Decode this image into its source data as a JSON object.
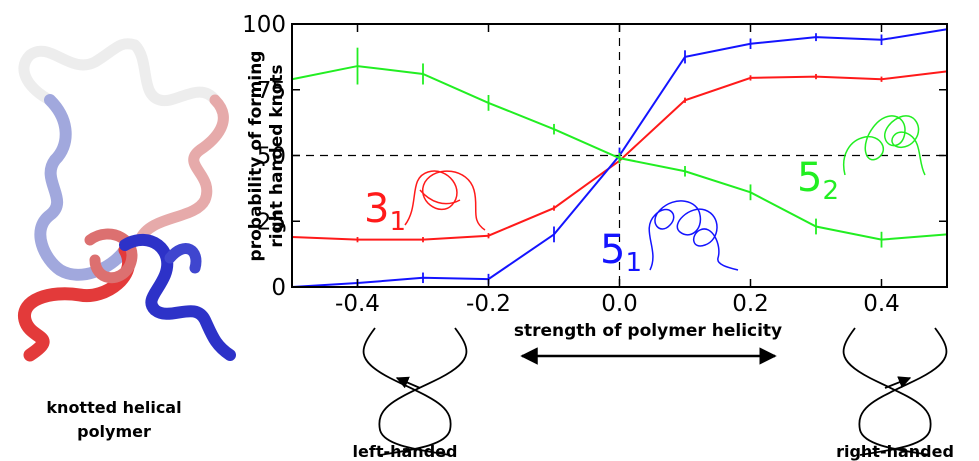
{
  "chart_data": {
    "type": "line",
    "xlabel": "strength of polymer helicity",
    "ylabel_line1": "probability of forming",
    "ylabel_line2": "right handed knots",
    "xlim": [
      -0.5,
      0.5
    ],
    "ylim": [
      0,
      100
    ],
    "x_ticks": [
      "-0.4",
      "-0.2",
      "0.0",
      "0.2",
      "0.4"
    ],
    "x_tick_values": [
      -0.4,
      -0.2,
      0.0,
      0.2,
      0.4
    ],
    "y_ticks": [
      "0",
      "25",
      "50",
      "75",
      "100"
    ],
    "y_tick_values": [
      0,
      25,
      50,
      75,
      100
    ],
    "grid": "dashed lines at x=0 and y=50",
    "x": [
      -0.5,
      -0.4,
      -0.3,
      -0.2,
      -0.1,
      0.0,
      0.1,
      0.2,
      0.3,
      0.4,
      0.5
    ],
    "series": [
      {
        "label_main": "3",
        "label_sub": "1",
        "color": "#ff1a1a",
        "values": [
          19,
          18,
          18,
          19.5,
          30,
          48,
          71,
          79.5,
          80,
          79,
          82
        ],
        "errors": [
          0,
          1,
          1,
          1,
          1,
          1,
          1,
          1,
          1,
          1,
          1
        ]
      },
      {
        "label_main": "5",
        "label_sub": "1",
        "color": "#1414ff",
        "values": [
          0,
          1.5,
          3.5,
          3,
          20,
          50,
          87.5,
          92.5,
          95,
          94,
          98
        ],
        "errors": [
          0,
          1.5,
          2,
          2,
          3,
          3,
          2.5,
          2,
          1.5,
          2,
          0
        ]
      },
      {
        "label_main": "5",
        "label_sub": "2",
        "color": "#22ee22",
        "values": [
          79,
          84,
          81,
          70,
          60,
          49,
          44,
          36,
          23,
          18,
          20
        ],
        "errors": [
          0,
          7,
          4,
          3,
          2,
          2,
          2,
          3,
          3,
          3,
          0
        ]
      }
    ]
  },
  "captions": {
    "polymer_line1": "knotted helical",
    "polymer_line2": "polymer",
    "left_handed": "left-handed",
    "right_handed": "right-handed"
  },
  "colors": {
    "axis": "#000000",
    "polymer_gradient": [
      "#e53b3b",
      "#e9a9a9",
      "#f2f2f2",
      "#9aa3dc",
      "#2a2fd0"
    ]
  }
}
